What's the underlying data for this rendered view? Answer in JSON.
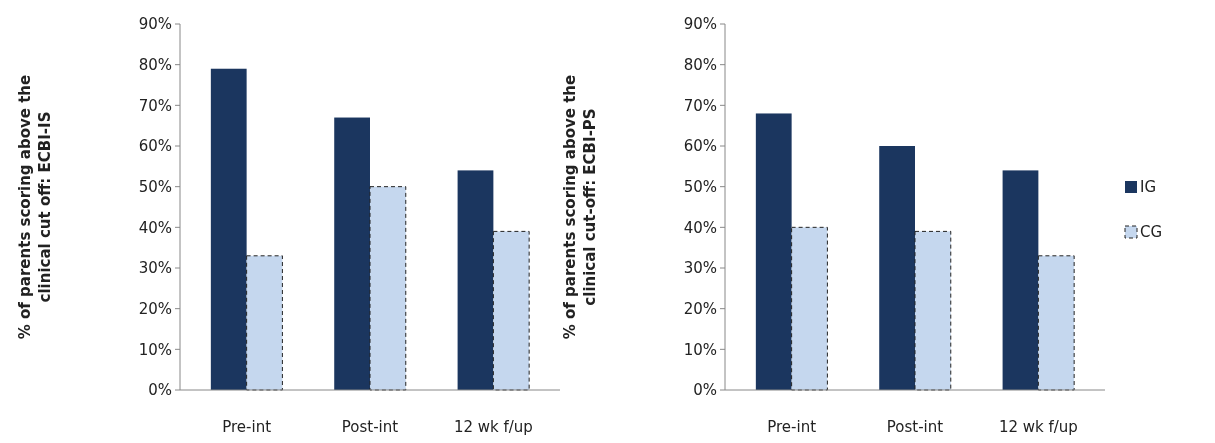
{
  "chart_data": [
    {
      "type": "bar",
      "ylabel": "% of parents scoring above the\nclinical cut off: ECBI-IS",
      "categories": [
        "Pre-int",
        "Post-int",
        "12 wk f/up"
      ],
      "ylim": [
        0,
        90
      ],
      "yticks": [
        {
          "value": 0,
          "label": "0%"
        },
        {
          "value": 10,
          "label": "10%"
        },
        {
          "value": 20,
          "label": "20%"
        },
        {
          "value": 30,
          "label": "30%"
        },
        {
          "value": 40,
          "label": "40%"
        },
        {
          "value": 50,
          "label": "50%"
        },
        {
          "value": 60,
          "label": "60%"
        },
        {
          "value": 70,
          "label": "70%"
        },
        {
          "value": 80,
          "label": "80%"
        },
        {
          "value": 90,
          "label": "90%"
        }
      ],
      "grid": false,
      "legend": false,
      "series": [
        {
          "color": "#1b365f",
          "values": [
            79,
            67,
            54
          ]
        },
        {
          "color": "#c5d7ee",
          "line_style": "dashed",
          "values": [
            33,
            50,
            39
          ]
        }
      ]
    },
    {
      "type": "bar",
      "ylabel": "% of parents scoring above the\nclinical cut-off: ECBI-PS",
      "categories": [
        "Pre-int",
        "Post-int",
        "12 wk f/up"
      ],
      "ylim": [
        0,
        90
      ],
      "yticks": [
        {
          "value": 0,
          "label": "0%"
        },
        {
          "value": 10,
          "label": "10%"
        },
        {
          "value": 20,
          "label": "20%"
        },
        {
          "value": 30,
          "label": "30%"
        },
        {
          "value": 40,
          "label": "40%"
        },
        {
          "value": 50,
          "label": "50%"
        },
        {
          "value": 60,
          "label": "60%"
        },
        {
          "value": 70,
          "label": "70%"
        },
        {
          "value": 80,
          "label": "80%"
        },
        {
          "value": 90,
          "label": "90%"
        }
      ],
      "grid": false,
      "legend": "right",
      "series": [
        {
          "name": "IG",
          "color": "#1b365f",
          "values": [
            68,
            60,
            54
          ]
        },
        {
          "name": "CG",
          "color": "#c5d7ee",
          "line_style": "dashed",
          "values": [
            40,
            39,
            33
          ]
        }
      ]
    }
  ]
}
